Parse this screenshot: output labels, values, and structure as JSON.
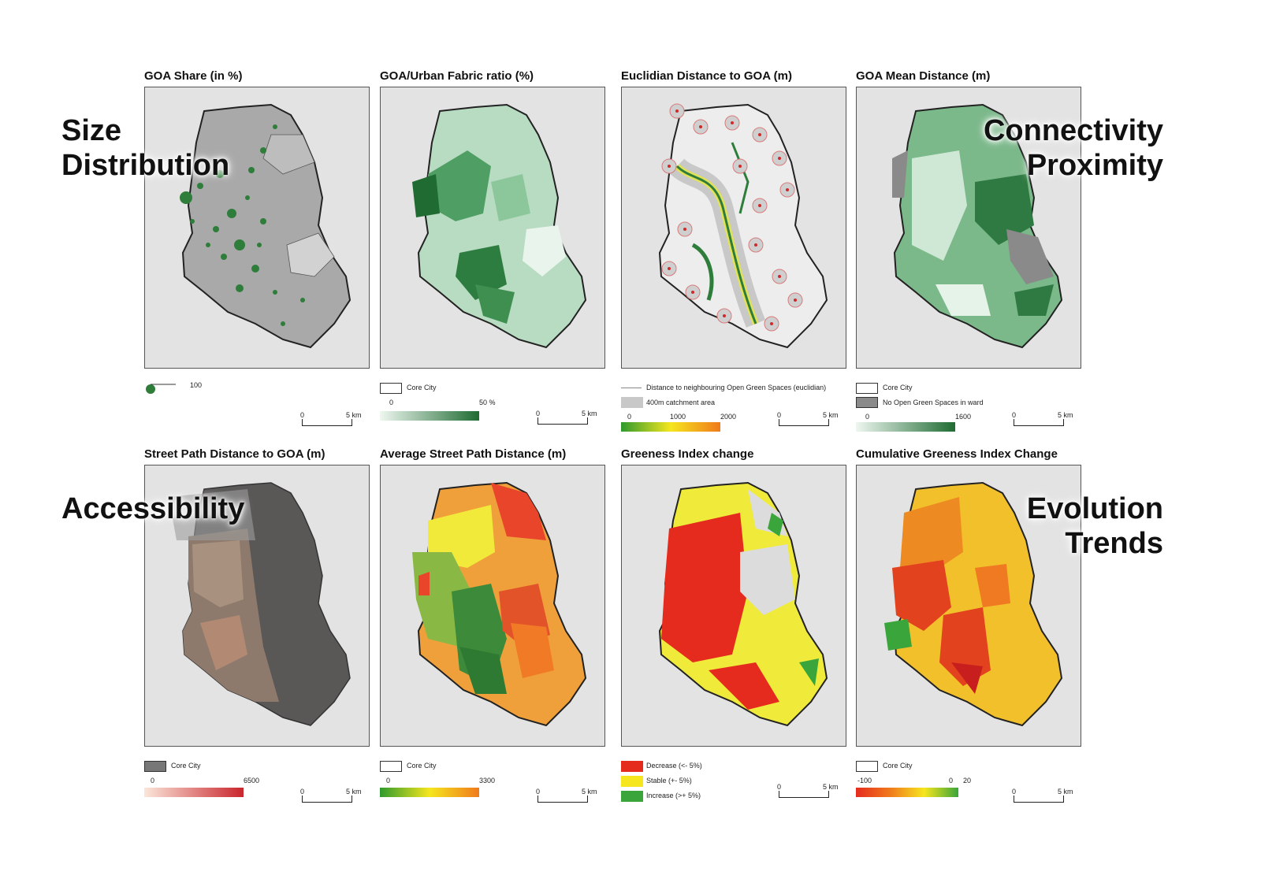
{
  "panels": [
    {
      "title": "GOA Share (in %)"
    },
    {
      "title": "GOA/Urban Fabric ratio (%)"
    },
    {
      "title": "Euclidian Distance to GOA (m)"
    },
    {
      "title": "GOA Mean Distance (m)"
    },
    {
      "title": "Street Path Distance to GOA (m)"
    },
    {
      "title": "Average Street Path Distance (m)"
    },
    {
      "title": "Greeness Index change"
    },
    {
      "title": "Cumulative Greeness Index Change"
    }
  ],
  "overlays": {
    "size": [
      "Size",
      "Distribution"
    ],
    "connectivity": [
      "Connectivity",
      "Proximity"
    ],
    "accessibility": [
      "Accessibility"
    ],
    "evolution": [
      "Evolution",
      "Trends"
    ]
  },
  "legends": {
    "p1": {
      "bubble_value": "100"
    },
    "p2": {
      "core": "Core City",
      "min": "0",
      "max": "50 %"
    },
    "p3": {
      "line": "Distance to neighbouring Open Green Spaces (euclidian)",
      "catchment": "400m catchment area",
      "t0": "0",
      "t1": "1000",
      "t2": "2000"
    },
    "p4": {
      "core": "Core City",
      "none": "No Open Green Spaces in ward",
      "min": "0",
      "max": "1600"
    },
    "p5": {
      "core": "Core City",
      "min": "0",
      "max": "6500"
    },
    "p6": {
      "core": "Core City",
      "min": "0",
      "max": "3300"
    },
    "p7": {
      "decrease": "Decrease (<- 5%)",
      "stable": "Stable (+- 5%)",
      "increase": "Increase (>+ 5%)"
    },
    "p8": {
      "core": "Core City",
      "min": "-100",
      "mid": "0",
      "max": "20"
    }
  },
  "scale": {
    "zero": "0",
    "five": "5 km"
  },
  "colors": {
    "green_dark": "#2e7d3a",
    "green_light": "#d9efdf",
    "orange": "#f08a24",
    "red": "#e52b1e",
    "yellow": "#f5e61e",
    "gray_dark": "#555555"
  }
}
